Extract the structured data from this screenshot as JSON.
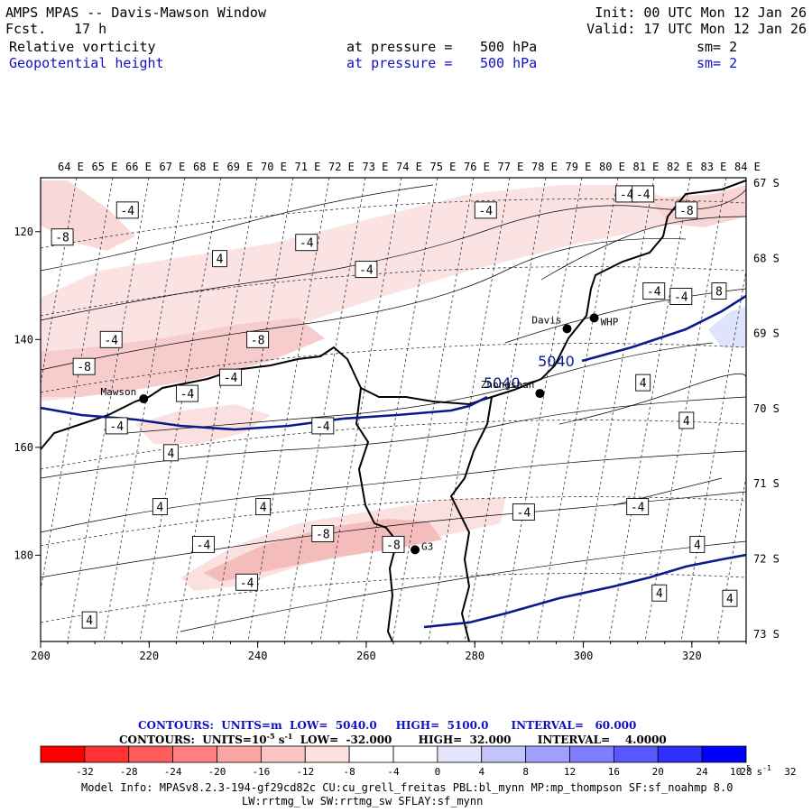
{
  "header": {
    "title": "AMPS MPAS -- Davis-Mawson Window",
    "fcst_label": "Fcst.",
    "fcst_value": "17 h",
    "init": "Init: 00 UTC Mon 12 Jan 26",
    "valid": "Valid: 17 UTC Mon 12 Jan 26",
    "field1": {
      "name": "Relative vorticity",
      "at": "at pressure =",
      "value": "500 hPa",
      "sm": "sm= 2"
    },
    "field2": {
      "name": "Geopotential height",
      "at": "at pressure =",
      "value": "500 hPa",
      "sm": "sm= 2"
    }
  },
  "colors": {
    "blue_text": "#1010c0",
    "height_contour": "#0a1a8c",
    "neg_fill": "#f9d3d3",
    "neg_fill_strong": "#f3aaaa",
    "pos_fill": "#dfe3fb"
  },
  "chart_data": {
    "type": "heatmap",
    "title": "Relative vorticity and Geopotential height at 500 hPa",
    "x_axis_ticks": [
      200,
      220,
      240,
      260,
      280,
      300,
      320
    ],
    "y_axis_ticks": [
      120,
      140,
      160,
      180
    ],
    "xlim": [
      200,
      330
    ],
    "ylim": [
      196,
      110
    ],
    "longitude_labels": [
      "64 E",
      "65 E",
      "66 E",
      "67 E",
      "68 E",
      "69 E",
      "70 E",
      "71 E",
      "72 E",
      "73 E",
      "74 E",
      "75 E",
      "76 E",
      "77 E",
      "78 E",
      "79 E",
      "80 E",
      "81 E",
      "82 E",
      "83 E",
      "84 E"
    ],
    "latitude_labels": [
      "67 S",
      "68 S",
      "69 S",
      "70 S",
      "71 S",
      "72 S",
      "73 S"
    ],
    "stations": [
      {
        "name": "Mawson",
        "x": 219,
        "y": 151
      },
      {
        "name": "Davis",
        "x": 297,
        "y": 138
      },
      {
        "name": "WHP",
        "x": 302,
        "y": 136
      },
      {
        "name": "Zhongshan",
        "x": 292,
        "y": 150
      },
      {
        "name": "G3",
        "x": 269,
        "y": 179
      }
    ],
    "height_contour_labels": [
      {
        "text": "5040",
        "x": 295,
        "y": 145
      },
      {
        "text": "5040",
        "x": 285,
        "y": 149
      }
    ],
    "vorticity_labels": [
      {
        "text": "-8",
        "x": 204,
        "y": 121
      },
      {
        "text": "-4",
        "x": 216,
        "y": 116
      },
      {
        "text": "-4",
        "x": 249,
        "y": 122
      },
      {
        "text": "-4",
        "x": 282,
        "y": 116
      },
      {
        "text": "-4",
        "x": 308,
        "y": 113
      },
      {
        "text": "-4",
        "x": 311,
        "y": 113
      },
      {
        "text": "-8",
        "x": 319,
        "y": 116
      },
      {
        "text": "4",
        "x": 233,
        "y": 125
      },
      {
        "text": "-4",
        "x": 260,
        "y": 127
      },
      {
        "text": "-4",
        "x": 313,
        "y": 131
      },
      {
        "text": "-4",
        "x": 318,
        "y": 132
      },
      {
        "text": "8",
        "x": 325,
        "y": 131
      },
      {
        "text": "-4",
        "x": 213,
        "y": 140
      },
      {
        "text": "-8",
        "x": 240,
        "y": 140
      },
      {
        "text": "-8",
        "x": 208,
        "y": 145
      },
      {
        "text": "-4",
        "x": 235,
        "y": 147
      },
      {
        "text": "-4",
        "x": 227,
        "y": 150
      },
      {
        "text": "4",
        "x": 311,
        "y": 148
      },
      {
        "text": "4",
        "x": 319,
        "y": 155
      },
      {
        "text": "-4",
        "x": 214,
        "y": 156
      },
      {
        "text": "-4",
        "x": 252,
        "y": 156
      },
      {
        "text": "4",
        "x": 224,
        "y": 161
      },
      {
        "text": "4",
        "x": 222,
        "y": 171
      },
      {
        "text": "4",
        "x": 241,
        "y": 171
      },
      {
        "text": "-4",
        "x": 289,
        "y": 172
      },
      {
        "text": "-4",
        "x": 310,
        "y": 171
      },
      {
        "text": "-8",
        "x": 252,
        "y": 176
      },
      {
        "text": "-4",
        "x": 230,
        "y": 178
      },
      {
        "text": "-8",
        "x": 265,
        "y": 178
      },
      {
        "text": "4",
        "x": 321,
        "y": 178
      },
      {
        "text": "-4",
        "x": 238,
        "y": 185
      },
      {
        "text": "4",
        "x": 314,
        "y": 187
      },
      {
        "text": "4",
        "x": 327,
        "y": 188
      },
      {
        "text": "4",
        "x": 209,
        "y": 192
      }
    ]
  },
  "footer": {
    "contours1": "CONTOURS:  UNITS=m  LOW=  5040.0     HIGH=  5100.0      INTERVAL=   60.000",
    "contours2": "CONTOURS:  UNITS=10",
    "contours2_sup": "-5",
    "contours2_rest": " s",
    "contours2_sup2": "-1",
    "contours2_tail": "  LOW=  -32.000       HIGH=  32.000       INTERVAL=    4.0000",
    "colorbar": {
      "colors": [
        "#ff0000",
        "#ff3333",
        "#ff5c5c",
        "#ff8080",
        "#fca4a4",
        "#fcc4c4",
        "#fde0e0",
        "#ffffff",
        "#ffffff",
        "#e4e4fc",
        "#c4c4fc",
        "#a0a0fc",
        "#7e7efc",
        "#5858fc",
        "#3030fc",
        "#0000ff"
      ],
      "labels": [
        "-32",
        "-28",
        "-24",
        "-20",
        "-16",
        "-12",
        "-8",
        "-4",
        "0",
        "4",
        "8",
        "12",
        "16",
        "20",
        "24",
        "28",
        "32"
      ],
      "units": "10",
      "units_sup": "-5",
      "units_s": "s",
      "units_sup2": "-1"
    },
    "model_info1": "Model Info: MPASv8.2.3-194-gf29cd82c CU:cu_grell_freitas PBL:bl_mynn MP:mp_thompson SF:sf_noahmp 8.0",
    "model_info2": "LW:rrtmg_lw SW:rrtmg_sw SFLAY:sf_mynn"
  }
}
